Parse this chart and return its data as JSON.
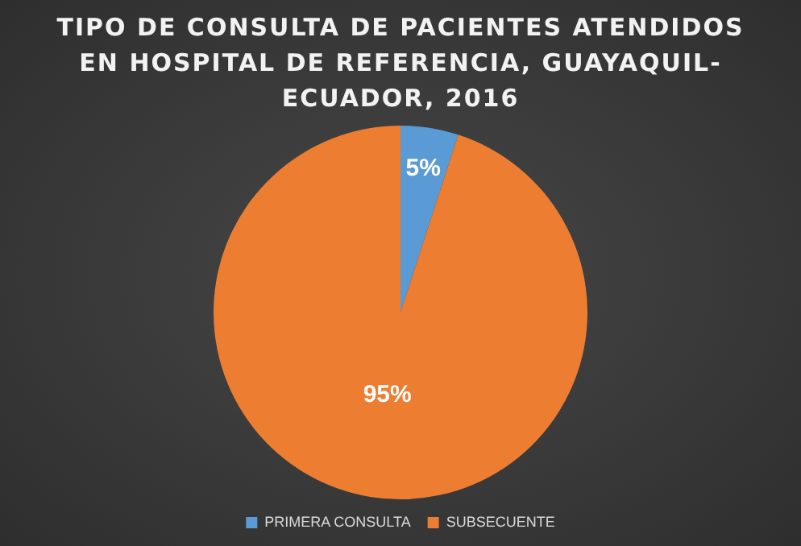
{
  "chart_data": {
    "type": "pie",
    "title": "TIPO DE CONSULTA DE PACIENTES ATENDIDOS EN HOSPITAL DE REFERENCIA, GUAYAQUIL-ECUADOR, 2016",
    "categories": [
      "PRIMERA CONSULTA",
      "SUBSECUENTE"
    ],
    "values": [
      5,
      95
    ],
    "colors": [
      "#5b9bd5",
      "#ed7d31"
    ],
    "value_labels": [
      "5%",
      "95%"
    ],
    "legend": "bottom"
  }
}
